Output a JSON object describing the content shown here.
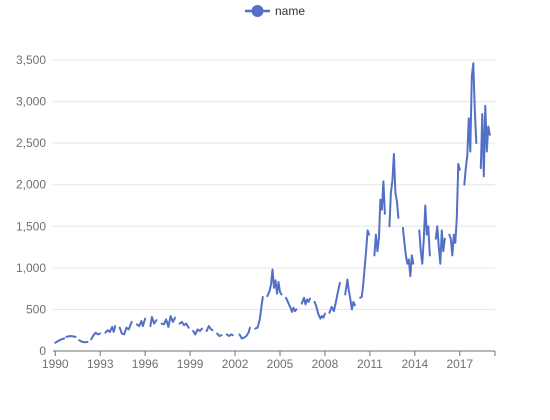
{
  "chart_data": {
    "type": "line",
    "title": "",
    "xlabel": "",
    "ylabel": "",
    "series": [
      {
        "name": "name",
        "color": "#5470c6",
        "segments": [
          [
            [
              1990.0,
              100
            ],
            [
              1990.2,
              120
            ],
            [
              1990.4,
              140
            ],
            [
              1990.6,
              150
            ]
          ],
          [
            [
              1990.75,
              170
            ],
            [
              1991.0,
              180
            ],
            [
              1991.2,
              175
            ],
            [
              1991.35,
              170
            ]
          ],
          [
            [
              1991.6,
              130
            ],
            [
              1991.8,
              110
            ],
            [
              1992.0,
              105
            ],
            [
              1992.15,
              110
            ]
          ],
          [
            [
              1992.4,
              140
            ],
            [
              1992.55,
              190
            ],
            [
              1992.7,
              220
            ],
            [
              1992.85,
              200
            ],
            [
              1993.0,
              210
            ]
          ],
          [
            [
              1993.35,
              220
            ],
            [
              1993.5,
              250
            ],
            [
              1993.65,
              230
            ],
            [
              1993.8,
              290
            ],
            [
              1993.9,
              230
            ],
            [
              1994.0,
              300
            ]
          ],
          [
            [
              1994.3,
              280
            ],
            [
              1994.45,
              210
            ],
            [
              1994.6,
              200
            ],
            [
              1994.75,
              280
            ],
            [
              1994.9,
              260
            ],
            [
              1995.1,
              350
            ]
          ],
          [
            [
              1995.45,
              320
            ],
            [
              1995.6,
              300
            ],
            [
              1995.75,
              360
            ],
            [
              1995.85,
              300
            ],
            [
              1996.0,
              390
            ]
          ],
          [
            [
              1996.35,
              300
            ],
            [
              1996.45,
              410
            ],
            [
              1996.6,
              330
            ],
            [
              1996.75,
              370
            ]
          ],
          [
            [
              1997.1,
              330
            ],
            [
              1997.25,
              320
            ],
            [
              1997.4,
              380
            ],
            [
              1997.55,
              290
            ],
            [
              1997.7,
              420
            ],
            [
              1997.85,
              350
            ],
            [
              1998.0,
              400
            ]
          ],
          [
            [
              1998.3,
              330
            ],
            [
              1998.45,
              350
            ],
            [
              1998.6,
              310
            ],
            [
              1998.75,
              330
            ],
            [
              1998.9,
              280
            ]
          ],
          [
            [
              1999.2,
              240
            ],
            [
              1999.35,
              200
            ],
            [
              1999.5,
              260
            ],
            [
              1999.65,
              240
            ],
            [
              1999.8,
              270
            ]
          ],
          [
            [
              2000.1,
              240
            ],
            [
              2000.25,
              300
            ],
            [
              2000.4,
              260
            ],
            [
              2000.5,
              250
            ]
          ],
          [
            [
              2000.8,
              210
            ],
            [
              2000.95,
              180
            ],
            [
              2001.1,
              190
            ]
          ],
          [
            [
              2001.45,
              200
            ],
            [
              2001.6,
              180
            ],
            [
              2001.75,
              200
            ],
            [
              2001.85,
              190
            ]
          ],
          [
            [
              2002.3,
              200
            ],
            [
              2002.45,
              150
            ],
            [
              2002.6,
              160
            ],
            [
              2002.75,
              180
            ],
            [
              2002.9,
              220
            ],
            [
              2003.0,
              280
            ]
          ],
          [
            [
              2003.35,
              270
            ],
            [
              2003.5,
              280
            ],
            [
              2003.65,
              380
            ],
            [
              2003.75,
              520
            ],
            [
              2003.85,
              650
            ]
          ],
          [
            [
              2004.15,
              660
            ],
            [
              2004.3,
              720
            ],
            [
              2004.4,
              800
            ],
            [
              2004.5,
              980
            ],
            [
              2004.6,
              760
            ],
            [
              2004.7,
              850
            ],
            [
              2004.8,
              690
            ],
            [
              2004.9,
              830
            ],
            [
              2005.0,
              710
            ],
            [
              2005.1,
              680
            ]
          ],
          [
            [
              2005.4,
              640
            ],
            [
              2005.5,
              600
            ],
            [
              2005.6,
              560
            ],
            [
              2005.7,
              520
            ],
            [
              2005.8,
              470
            ],
            [
              2005.9,
              520
            ],
            [
              2006.0,
              480
            ],
            [
              2006.1,
              500
            ]
          ],
          [
            [
              2006.45,
              570
            ],
            [
              2006.6,
              640
            ],
            [
              2006.7,
              560
            ],
            [
              2006.8,
              620
            ],
            [
              2006.9,
              590
            ],
            [
              2007.0,
              630
            ]
          ],
          [
            [
              2007.3,
              590
            ],
            [
              2007.4,
              550
            ],
            [
              2007.55,
              450
            ],
            [
              2007.7,
              390
            ],
            [
              2007.8,
              420
            ],
            [
              2007.9,
              400
            ],
            [
              2008.0,
              450
            ]
          ],
          [
            [
              2008.3,
              460
            ],
            [
              2008.45,
              530
            ],
            [
              2008.6,
              480
            ],
            [
              2008.7,
              560
            ],
            [
              2008.85,
              700
            ],
            [
              2009.0,
              820
            ]
          ],
          [
            [
              2009.35,
              680
            ],
            [
              2009.5,
              860
            ],
            [
              2009.6,
              720
            ],
            [
              2009.7,
              620
            ],
            [
              2009.8,
              500
            ],
            [
              2009.9,
              590
            ],
            [
              2010.0,
              550
            ]
          ],
          [
            [
              2010.35,
              640
            ],
            [
              2010.45,
              650
            ],
            [
              2010.55,
              780
            ],
            [
              2010.65,
              1000
            ],
            [
              2010.75,
              1200
            ],
            [
              2010.85,
              1450
            ],
            [
              2010.95,
              1400
            ]
          ],
          [
            [
              2011.3,
              1150
            ],
            [
              2011.4,
              1400
            ],
            [
              2011.5,
              1200
            ],
            [
              2011.6,
              1350
            ],
            [
              2011.7,
              1820
            ],
            [
              2011.8,
              1700
            ],
            [
              2011.9,
              2040
            ],
            [
              2012.0,
              1650
            ]
          ],
          [
            [
              2012.3,
              1500
            ],
            [
              2012.4,
              1900
            ],
            [
              2012.5,
              2050
            ],
            [
              2012.6,
              2370
            ],
            [
              2012.7,
              1900
            ],
            [
              2012.8,
              1800
            ],
            [
              2012.9,
              1600
            ]
          ],
          [
            [
              2013.2,
              1480
            ],
            [
              2013.3,
              1300
            ],
            [
              2013.4,
              1150
            ],
            [
              2013.5,
              1050
            ],
            [
              2013.6,
              1100
            ],
            [
              2013.7,
              900
            ],
            [
              2013.8,
              1150
            ],
            [
              2013.9,
              1050
            ]
          ],
          [
            [
              2014.3,
              1450
            ],
            [
              2014.4,
              1200
            ],
            [
              2014.5,
              1050
            ],
            [
              2014.6,
              1350
            ],
            [
              2014.7,
              1750
            ],
            [
              2014.8,
              1400
            ],
            [
              2014.9,
              1500
            ],
            [
              2015.0,
              1150
            ]
          ],
          [
            [
              2015.4,
              1350
            ],
            [
              2015.5,
              1500
            ],
            [
              2015.6,
              1250
            ],
            [
              2015.7,
              1050
            ],
            [
              2015.8,
              1450
            ],
            [
              2015.9,
              1200
            ],
            [
              2016.0,
              1350
            ]
          ],
          [
            [
              2016.3,
              1400
            ],
            [
              2016.4,
              1350
            ],
            [
              2016.5,
              1150
            ],
            [
              2016.6,
              1400
            ],
            [
              2016.7,
              1300
            ],
            [
              2016.8,
              1600
            ],
            [
              2016.9,
              2250
            ],
            [
              2017.0,
              2180
            ]
          ],
          [
            [
              2017.3,
              2000
            ],
            [
              2017.4,
              2200
            ],
            [
              2017.5,
              2350
            ],
            [
              2017.6,
              2800
            ],
            [
              2017.7,
              2400
            ],
            [
              2017.8,
              3300
            ],
            [
              2017.9,
              3460
            ],
            [
              2018.0,
              2900
            ],
            [
              2018.1,
              2500
            ]
          ],
          [
            [
              2018.4,
              2200
            ],
            [
              2018.5,
              2850
            ],
            [
              2018.6,
              2100
            ],
            [
              2018.7,
              2950
            ],
            [
              2018.8,
              2400
            ],
            [
              2018.9,
              2700
            ],
            [
              2019.0,
              2600
            ]
          ]
        ]
      }
    ],
    "xlim": [
      1989.85,
      2019.35
    ],
    "ylim": [
      0,
      3500
    ],
    "x_ticks": [
      1990,
      1993,
      1996,
      1999,
      2002,
      2005,
      2008,
      2011,
      2014,
      2017
    ],
    "x_tick_labels": [
      "1990",
      "1993",
      "1996",
      "1999",
      "2002",
      "2005",
      "2008",
      "2011",
      "2014",
      "2017"
    ],
    "y_ticks": [
      0,
      500,
      1000,
      1500,
      2000,
      2500,
      3000,
      3500
    ],
    "y_tick_labels": [
      "0",
      "500",
      "1,000",
      "1,500",
      "2,000",
      "2,500",
      "3,000",
      "3,500"
    ],
    "grid": true,
    "legend": {
      "position": "top-center",
      "icon": "circle-line-icon"
    }
  }
}
